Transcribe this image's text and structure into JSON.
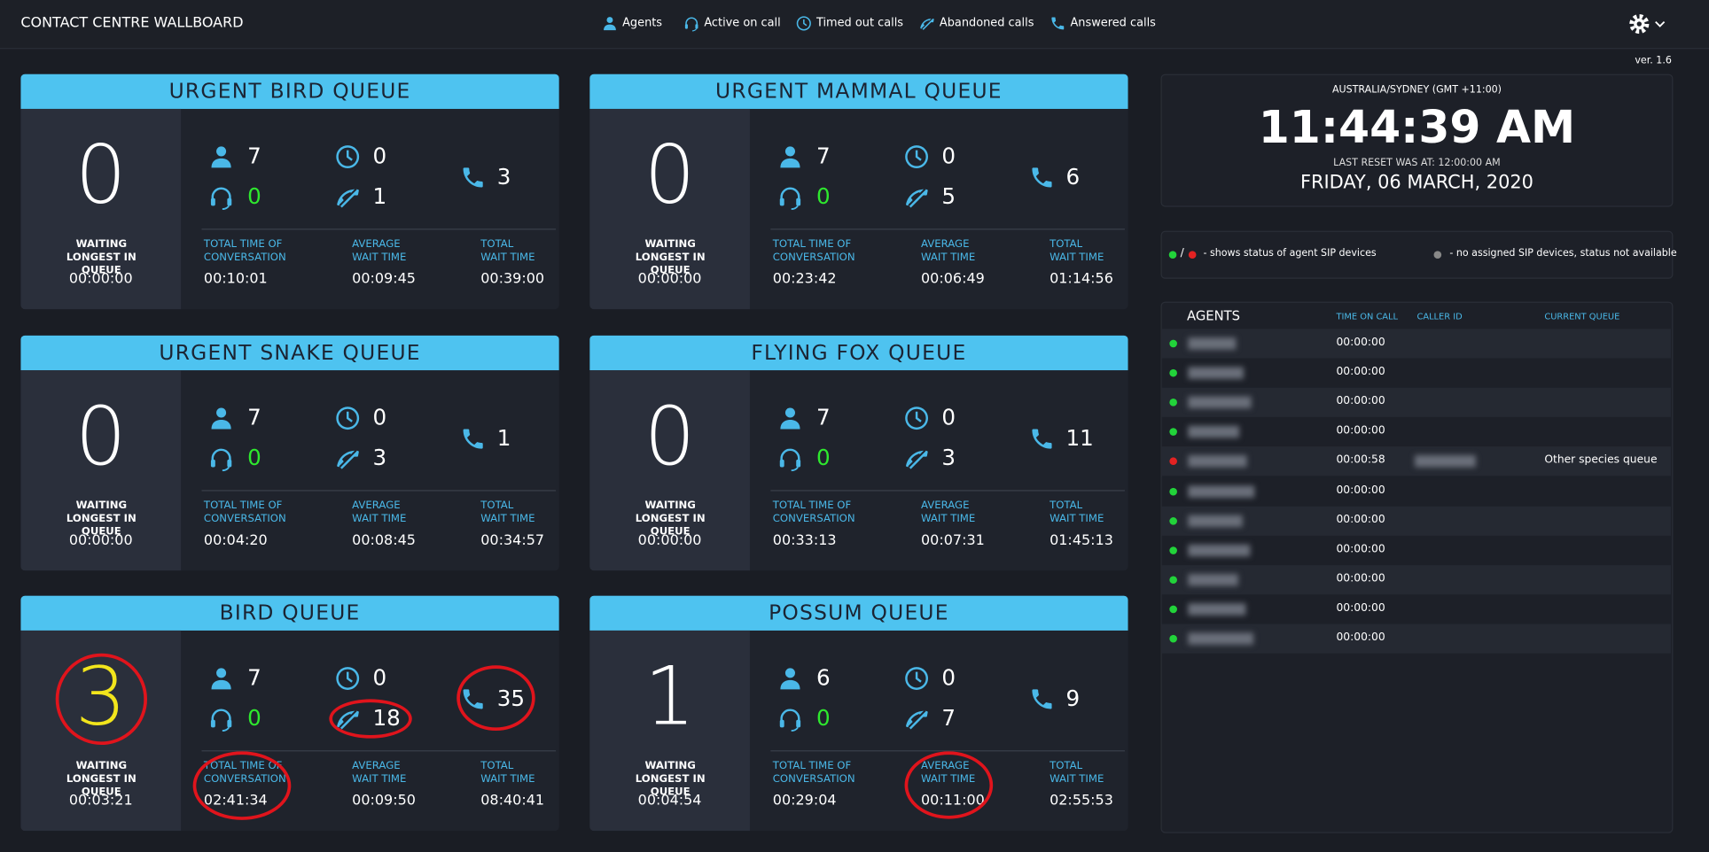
{
  "header": {
    "title": "CONTACT CENTRE WALLBOARD",
    "nav": [
      "Agents",
      "Active on call",
      "Timed out calls",
      "Abandoned calls",
      "Answered calls"
    ],
    "version": "ver. 1.6"
  },
  "queues": [
    {
      "name": "URGENT BIRD QUEUE",
      "waiting": 0,
      "waiting_color": "#ffffff",
      "waiting_label": "WAITING LONGEST IN QUEUE",
      "waiting_time": "00:00:00",
      "agents": 7,
      "active": 0,
      "timed_out": 0,
      "abandoned": 1,
      "answered": 3,
      "stats": [
        {
          "label": "TOTAL TIME OF CONVERSATION",
          "value": "00:10:01"
        },
        {
          "label": "AVERAGE WAIT TIME",
          "value": "00:09:45"
        },
        {
          "label": "TOTAL WAIT TIME",
          "value": "00:39:00"
        }
      ]
    },
    {
      "name": "URGENT MAMMAL QUEUE",
      "waiting": 0,
      "waiting_color": "#ffffff",
      "waiting_label": "WAITING LONGEST IN QUEUE",
      "waiting_time": "00:00:00",
      "agents": 7,
      "active": 0,
      "timed_out": 0,
      "abandoned": 5,
      "answered": 6,
      "stats": [
        {
          "label": "TOTAL TIME OF CONVERSATION",
          "value": "00:23:42"
        },
        {
          "label": "AVERAGE WAIT TIME",
          "value": "00:06:49"
        },
        {
          "label": "TOTAL WAIT TIME",
          "value": "01:14:56"
        }
      ]
    },
    {
      "name": "URGENT SNAKE QUEUE",
      "waiting": 0,
      "waiting_color": "#ffffff",
      "waiting_label": "WAITING LONGEST IN QUEUE",
      "waiting_time": "00:00:00",
      "agents": 7,
      "active": 0,
      "timed_out": 0,
      "abandoned": 3,
      "answered": 1,
      "stats": [
        {
          "label": "TOTAL TIME OF CONVERSATION",
          "value": "00:04:20"
        },
        {
          "label": "AVERAGE WAIT TIME",
          "value": "00:08:45"
        },
        {
          "label": "TOTAL WAIT TIME",
          "value": "00:34:57"
        }
      ]
    },
    {
      "name": "FLYING FOX QUEUE",
      "waiting": 0,
      "waiting_color": "#ffffff",
      "waiting_label": "WAITING LONGEST IN QUEUE",
      "waiting_time": "00:00:00",
      "agents": 7,
      "active": 0,
      "timed_out": 0,
      "abandoned": 3,
      "answered": 11,
      "stats": [
        {
          "label": "TOTAL TIME OF CONVERSATION",
          "value": "00:33:13"
        },
        {
          "label": "AVERAGE WAIT TIME",
          "value": "00:07:31"
        },
        {
          "label": "TOTAL WAIT TIME",
          "value": "01:45:13"
        }
      ]
    },
    {
      "name": "BIRD QUEUE",
      "waiting": 3,
      "waiting_color": "#f2e51c",
      "waiting_label": "WAITING LONGEST IN QUEUE",
      "waiting_time": "00:03:21",
      "agents": 7,
      "active": 0,
      "timed_out": 0,
      "abandoned": 18,
      "answered": 35,
      "stats": [
        {
          "label": "TOTAL TIME OF CONVERSATION",
          "value": "02:41:34"
        },
        {
          "label": "AVERAGE WAIT TIME",
          "value": "00:09:50"
        },
        {
          "label": "TOTAL WAIT TIME",
          "value": "08:40:41"
        }
      ]
    },
    {
      "name": "POSSUM QUEUE",
      "waiting": 1,
      "waiting_color": "#ffffff",
      "waiting_label": "WAITING LONGEST IN QUEUE",
      "waiting_time": "00:04:54",
      "agents": 6,
      "active": 0,
      "timed_out": 0,
      "abandoned": 7,
      "answered": 9,
      "stats": [
        {
          "label": "TOTAL TIME OF CONVERSATION",
          "value": "00:29:04"
        },
        {
          "label": "AVERAGE WAIT TIME",
          "value": "00:11:00"
        },
        {
          "label": "TOTAL WAIT TIME",
          "value": "02:55:53"
        }
      ]
    }
  ],
  "clock": {
    "timezone": "AUSTRALIA/SYDNEY (GMT +11:00)",
    "time": "11:44:39 AM",
    "reset": "LAST RESET WAS AT: 12:00:00 AM",
    "date": "FRIDAY, 06 MARCH, 2020"
  },
  "legend": {
    "separator": "/",
    "status": "- shows status of agent SIP devices",
    "unavailable": "- no assigned SIP devices, status not available"
  },
  "agents": {
    "title": "AGENTS",
    "columns": [
      "TIME ON CALL",
      "CALLER ID",
      "CURRENT QUEUE"
    ],
    "rows": [
      {
        "status": "#22d33a",
        "time_on_call": "00:00:00"
      },
      {
        "status": "#22d33a",
        "time_on_call": "00:00:00"
      },
      {
        "status": "#22d33a",
        "time_on_call": "00:00:00"
      },
      {
        "status": "#22d33a",
        "time_on_call": "00:00:00"
      },
      {
        "status": "#e32222",
        "time_on_call": "00:00:58",
        "current_queue": "Other species queue"
      },
      {
        "status": "#22d33a",
        "time_on_call": "00:00:00"
      },
      {
        "status": "#22d33a",
        "time_on_call": "00:00:00"
      },
      {
        "status": "#22d33a",
        "time_on_call": "00:00:00"
      },
      {
        "status": "#22d33a",
        "time_on_call": "00:00:00"
      },
      {
        "status": "#22d33a",
        "time_on_call": "00:00:00"
      },
      {
        "status": "#22d33a",
        "time_on_call": "00:00:00"
      }
    ]
  }
}
